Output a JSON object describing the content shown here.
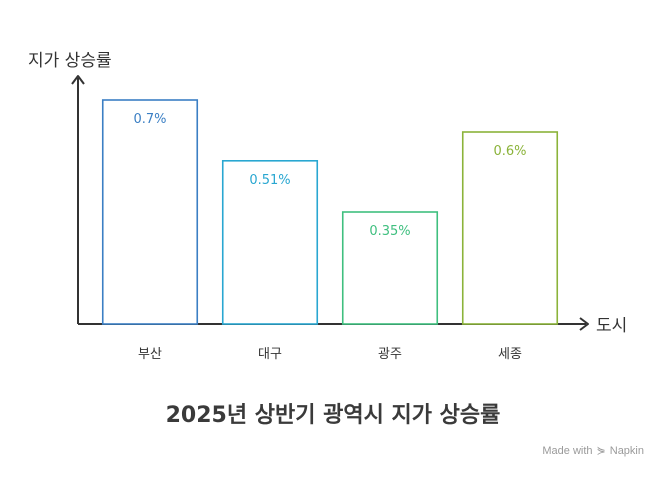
{
  "chart_data": {
    "type": "bar",
    "title": "2025년 상반기 광역시 지가 상승률",
    "xlabel": "도시",
    "ylabel": "지가 상승률",
    "categories": [
      "부산",
      "대구",
      "광주",
      "세종"
    ],
    "values": [
      0.7,
      0.51,
      0.35,
      0.6
    ],
    "value_labels": [
      "0.7%",
      "0.51%",
      "0.35%",
      "0.6%"
    ],
    "colors": [
      "#3b7fc4",
      "#29a7d1",
      "#3fbf7f",
      "#8bb33a"
    ],
    "ylim": [
      0,
      0.75
    ],
    "grid": false
  },
  "footer": {
    "made_with": "Made with",
    "brand": "Napkin",
    "brand_icon": "napkin-logo-icon"
  }
}
